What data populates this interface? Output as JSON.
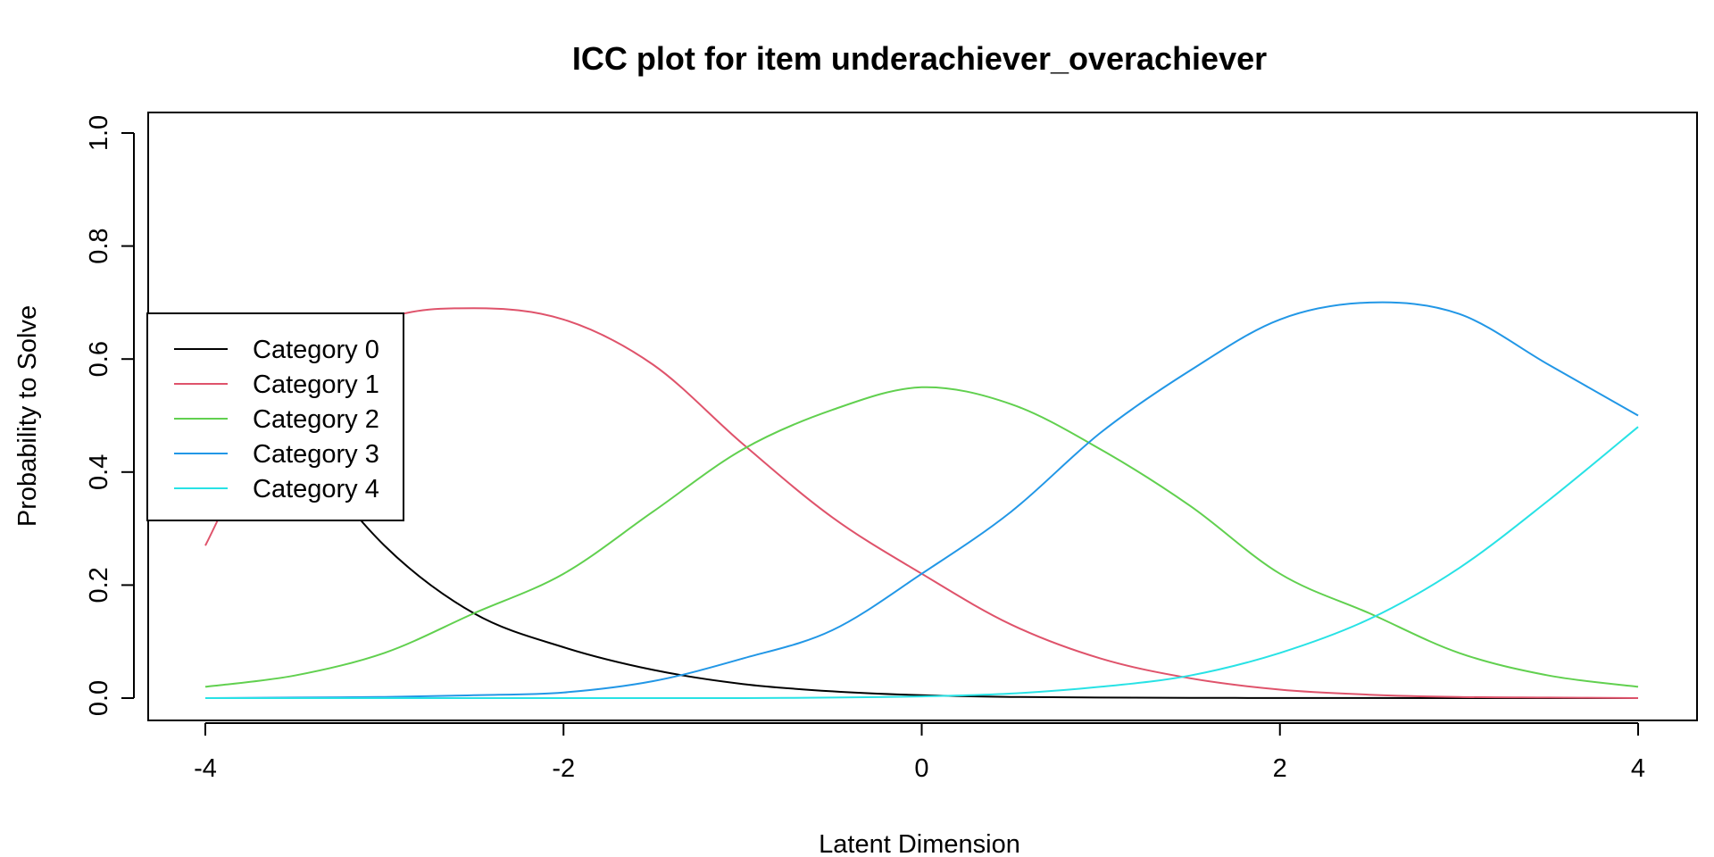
{
  "chart_data": {
    "type": "line",
    "title": "ICC plot for item underachiever_overachiever",
    "xlabel": "Latent Dimension",
    "ylabel": "Probability to Solve",
    "xlim": [
      -4,
      4
    ],
    "ylim": [
      0,
      1
    ],
    "xticks": [
      "-4",
      "-2",
      "0",
      "2",
      "4"
    ],
    "yticks": [
      "0.0",
      "0.2",
      "0.4",
      "0.6",
      "0.8",
      "1.0"
    ],
    "grid": false,
    "legend_position": "left",
    "x": [
      -4,
      -3.5,
      -3,
      -2.5,
      -2,
      -1.5,
      -1,
      -0.5,
      0,
      0.5,
      1,
      1.5,
      2,
      2.5,
      3,
      3.5,
      4
    ],
    "series": [
      {
        "name": "Category 0",
        "color": "#000000",
        "values": [
          0.67,
          0.46,
          0.27,
          0.15,
          0.09,
          0.05,
          0.025,
          0.012,
          0.005,
          0.002,
          0.001,
          0.0005,
          0.0002,
          0.0001,
          0.0,
          0.0,
          0.0
        ]
      },
      {
        "name": "Category 1",
        "color": "#DF536B",
        "values": [
          0.27,
          0.57,
          0.67,
          0.69,
          0.67,
          0.59,
          0.45,
          0.32,
          0.22,
          0.13,
          0.07,
          0.035,
          0.015,
          0.006,
          0.002,
          0.001,
          0.0
        ]
      },
      {
        "name": "Category 2",
        "color": "#61D04F",
        "values": [
          0.02,
          0.04,
          0.08,
          0.15,
          0.22,
          0.33,
          0.44,
          0.51,
          0.55,
          0.52,
          0.44,
          0.34,
          0.22,
          0.15,
          0.08,
          0.04,
          0.02
        ]
      },
      {
        "name": "Category 3",
        "color": "#2297E6",
        "values": [
          0.0,
          0.001,
          0.002,
          0.005,
          0.01,
          0.03,
          0.07,
          0.12,
          0.22,
          0.33,
          0.47,
          0.58,
          0.67,
          0.7,
          0.68,
          0.59,
          0.5
        ]
      },
      {
        "name": "Category 4",
        "color": "#28E2E5",
        "values": [
          0.0,
          0.0,
          0.0,
          0.0,
          0.0,
          0.0,
          0.0,
          0.001,
          0.003,
          0.008,
          0.02,
          0.04,
          0.08,
          0.14,
          0.23,
          0.35,
          0.48
        ]
      }
    ]
  }
}
